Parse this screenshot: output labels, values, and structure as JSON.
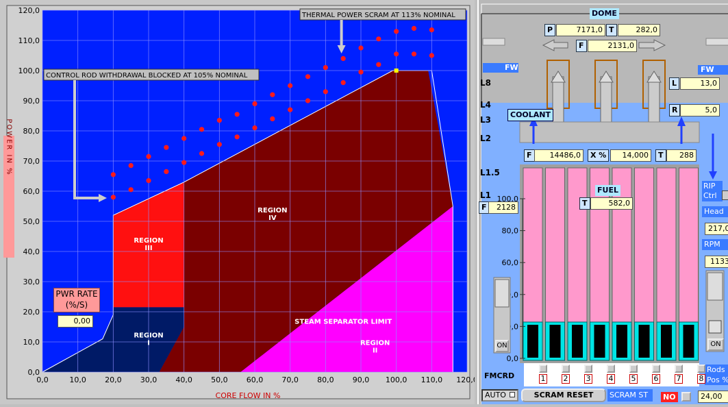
{
  "chart_data": {
    "type": "scatter",
    "xlabel": "CORE FLOW  IN %",
    "ylabel": "POWER IN %",
    "xlim": [
      0,
      120
    ],
    "ylim": [
      0,
      120
    ],
    "xticks": [
      "0,0",
      "10,0",
      "20,0",
      "30,0",
      "40,0",
      "50,0",
      "60,0",
      "70,0",
      "80,0",
      "90,0",
      "100,0",
      "110,0",
      "120,0"
    ],
    "yticks": [
      "0,0",
      "10,0",
      "20,0",
      "30,0",
      "40,0",
      "50,0",
      "60,0",
      "70,0",
      "80,0",
      "90,0",
      "100,0",
      "110,0",
      "120,0"
    ],
    "grid": true,
    "series": [
      {
        "name": "",
        "points": [
          [
            20,
            58
          ],
          [
            20,
            65.5
          ],
          [
            25,
            60.5
          ],
          [
            25,
            68.5
          ],
          [
            30,
            63.5
          ],
          [
            30,
            71.5
          ],
          [
            35,
            66.5
          ],
          [
            35,
            74.5
          ],
          [
            40,
            69.5
          ],
          [
            40,
            77.5
          ],
          [
            45,
            72.5
          ],
          [
            45,
            80.5
          ],
          [
            50,
            75.5
          ],
          [
            50,
            83.5
          ],
          [
            55,
            78
          ],
          [
            55,
            85.5
          ],
          [
            60,
            81
          ],
          [
            60,
            89
          ],
          [
            65,
            84
          ],
          [
            65,
            92
          ],
          [
            70,
            87
          ],
          [
            70,
            95
          ],
          [
            75,
            90
          ],
          [
            75,
            98
          ],
          [
            80,
            93
          ],
          [
            80,
            101
          ],
          [
            85,
            96
          ],
          [
            85,
            104
          ],
          [
            90,
            99.5
          ],
          [
            90,
            107.5
          ],
          [
            95,
            102
          ],
          [
            95,
            110.5
          ],
          [
            100,
            105.5
          ],
          [
            100,
            113
          ],
          [
            105,
            105.5
          ],
          [
            105,
            114
          ],
          [
            110,
            105
          ],
          [
            110,
            113.5
          ]
        ]
      }
    ],
    "operating_point": [
      100,
      100
    ],
    "regions": [
      {
        "label_lines": [
          "REGION",
          "I"
        ]
      },
      {
        "label_lines": [
          "REGION",
          "III"
        ]
      },
      {
        "label_lines": [
          "REGION",
          "IV"
        ]
      },
      {
        "label_lines": [
          "STEAM SEPARATOR LIMIT"
        ]
      },
      {
        "label_lines": [
          "REGION",
          "II"
        ]
      }
    ],
    "annotations": {
      "scram": "THERMAL POWER SCRAM AT 113% NOMINAL",
      "rod_block": "CONTROL ROD WITHDRAWAL BLOCKED AT 105% NOMINAL"
    }
  },
  "pwr_rate": {
    "label_line1": "PWR RATE",
    "label_line2": "(%/S)",
    "value": "0,00"
  },
  "vessel": {
    "dome_label": "DOME",
    "p_label": "P",
    "p_value": "7171,0",
    "t_label": "T",
    "t_value": "282,0",
    "f_label": "F",
    "f_value": "2131,0",
    "fw_left": "FW",
    "fw_right": "FW",
    "l_label": "L",
    "l_value": "13,0",
    "r_label": "R",
    "r_value": "5,0",
    "levels": [
      "L8",
      "L4",
      "L3",
      "L2",
      "L1.5",
      "L1"
    ],
    "coolant_label": "COOLANT",
    "cf_label": "F",
    "cf_value": "14486,0",
    "x_label": "X %",
    "x_value": "14,000",
    "ct_label": "T",
    "ct_value": "288",
    "fuel_label": "FUEL",
    "fuel_t_label": "T",
    "fuel_t_value": "582,0",
    "f_left_label": "F",
    "f_left_value": "2128",
    "scale": [
      "100,0",
      "80,0",
      "60,0",
      "40,0",
      "20,0",
      "0,0"
    ],
    "rip_label": "RIP Ctrl",
    "head_label": "Head",
    "head_value": "217,0",
    "rpm_label": "RPM",
    "rpm_value": "1133",
    "on_left": "ON",
    "on_right": "ON",
    "rod_numbers": [
      "1",
      "2",
      "3",
      "4",
      "5",
      "6",
      "7",
      "8"
    ],
    "fmcrd": "FMCRD",
    "auto": "AUTO",
    "scram_reset": "SCRAM RESET",
    "scram_st": "SCRAM ST",
    "no": "NO",
    "rods_pos_label": "Rods Pos %",
    "rods_pos_value": "24,00"
  },
  "colors": {
    "plot_bg": "#0020ff",
    "region1": "#001a66",
    "region3": "#ff1010",
    "region4": "#7a0000",
    "region2": "#ff00ff",
    "fuel": "#ff99cc",
    "coolant": "#80b0ff"
  }
}
